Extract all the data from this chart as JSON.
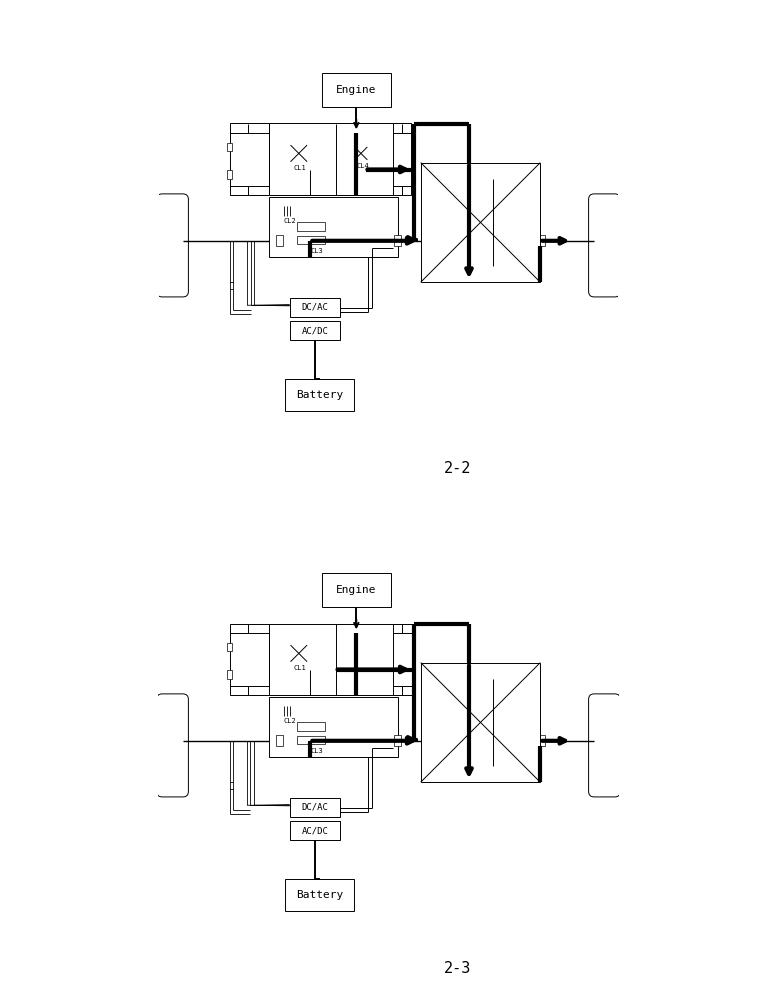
{
  "bg_color": "#ffffff",
  "engine_label": "Engine",
  "battery_label": "Battery",
  "dcac_label": "DC/AC",
  "acdc_label": "AC/DC",
  "cl1_label": "CL1",
  "cl2_label": "CL2",
  "cl3_label": "CL3",
  "cl4_label": "CL4",
  "diagram1_label": "2-2",
  "diagram2_label": "2-3"
}
